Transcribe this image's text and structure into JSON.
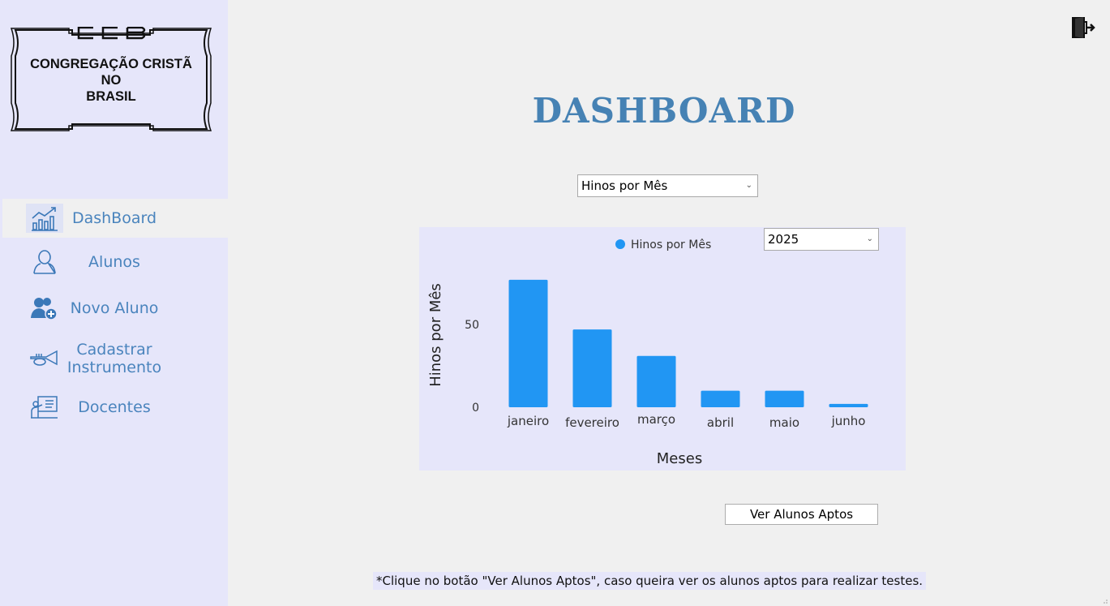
{
  "sidebar": {
    "logo": {
      "lines": [
        "CONGREGAÇÃO CRISTÃ",
        "NO",
        "BRASIL"
      ],
      "monogram": "CCB"
    },
    "items": [
      {
        "label": "DashBoard",
        "icon": "chart-icon",
        "active": true
      },
      {
        "label": "Alunos",
        "icon": "user-icon"
      },
      {
        "label": "Novo Aluno",
        "icon": "add-user-icon"
      },
      {
        "label": "Cadastrar\nInstrumento",
        "label_line1": "Cadastrar",
        "label_line2": "Instrumento",
        "icon": "trumpet-icon"
      },
      {
        "label": "Docentes",
        "icon": "teacher-icon"
      }
    ]
  },
  "header": {
    "title": "DASHBOARD",
    "exit_icon": "exit-door-icon"
  },
  "report_select": {
    "value": "Hinos por Mês"
  },
  "year_select": {
    "value": "2025"
  },
  "colors": {
    "accent": "#4682b4",
    "bar": "#2196f3",
    "sidebar_bg": "#e6e6fa",
    "nav_text": "#4a84bd"
  },
  "chart_data": {
    "type": "bar",
    "categories": [
      "janeiro",
      "fevereiro",
      "março",
      "abril",
      "maio",
      "junho"
    ],
    "series": [
      {
        "name": "Hinos por Mês",
        "values": [
          77,
          47,
          31,
          10,
          10,
          2
        ]
      }
    ],
    "xlabel": "Meses",
    "ylabel": "Hinos por Mês",
    "yticks": [
      0,
      50
    ],
    "ylim": [
      0,
      80
    ],
    "legend": "top-center",
    "grid": false
  },
  "button": {
    "label": "Ver Alunos Aptos"
  },
  "note": "*Clique no botão \"Ver Alunos Aptos\", caso queira ver os alunos aptos para realizar testes."
}
